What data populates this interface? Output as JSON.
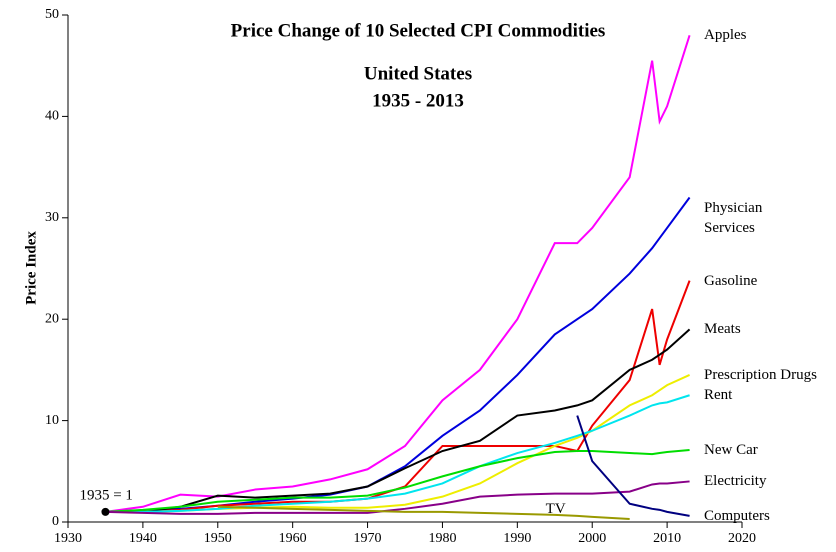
{
  "chart_data": {
    "type": "line",
    "title": "Price Change of 10 Selected CPI Commodities",
    "subtitle": [
      "United States",
      "1935 - 2013"
    ],
    "y_label": "Price Index",
    "annotation": "1935 = 1",
    "annotation_point": [
      1935,
      1
    ],
    "x": [
      1935,
      1940,
      1945,
      1950,
      1955,
      1960,
      1965,
      1970,
      1975,
      1980,
      1985,
      1990,
      1995,
      1998,
      2000,
      2005,
      2008,
      2009,
      2010,
      2013
    ],
    "series": [
      {
        "name": "Apples",
        "color": "#ff00ff",
        "values": [
          1,
          1.5,
          2.7,
          2.5,
          3.2,
          3.5,
          4.2,
          5.2,
          7.5,
          12,
          15,
          20,
          27.5,
          27.5,
          29,
          34,
          45.5,
          39.5,
          41,
          48
        ]
      },
      {
        "name": "Physician Services",
        "color": "#0000dd",
        "values": [
          1,
          1.1,
          1.3,
          1.6,
          2,
          2.3,
          2.7,
          3.5,
          5.5,
          8.5,
          11,
          14.5,
          18.5,
          20,
          21,
          24.5,
          27,
          28,
          29,
          32
        ]
      },
      {
        "name": "Gasoline",
        "color": "#ee0000",
        "values": [
          1,
          1,
          1.2,
          1.6,
          1.8,
          2,
          2,
          2.3,
          3.5,
          7.5,
          7.5,
          7.5,
          7.5,
          7,
          9.5,
          14,
          21,
          15.5,
          18,
          23.8
        ]
      },
      {
        "name": "Meats",
        "color": "#000000",
        "values": [
          1,
          1,
          1.5,
          2.6,
          2.4,
          2.6,
          2.8,
          3.5,
          5.3,
          7,
          8,
          10.5,
          11,
          11.5,
          12,
          15,
          16,
          16.5,
          17,
          19
        ]
      },
      {
        "name": "Prescription Drugs",
        "color": "#eeee00",
        "values": [
          1,
          1,
          1.1,
          1.3,
          1.4,
          1.5,
          1.4,
          1.4,
          1.7,
          2.5,
          3.8,
          5.8,
          7.5,
          8.3,
          9,
          11.5,
          12.5,
          13,
          13.5,
          14.5
        ]
      },
      {
        "name": "Rent",
        "color": "#00e5ee",
        "values": [
          1,
          1,
          1.1,
          1.3,
          1.6,
          1.8,
          2,
          2.3,
          2.8,
          3.8,
          5.5,
          6.8,
          7.8,
          8.5,
          9,
          10.5,
          11.5,
          11.7,
          11.8,
          12.5
        ]
      },
      {
        "name": "New Car",
        "color": "#00dd00",
        "values": [
          1,
          1.2,
          1.5,
          2,
          2.2,
          2.4,
          2.4,
          2.6,
          3.4,
          4.5,
          5.5,
          6.3,
          6.9,
          7,
          7,
          6.8,
          6.7,
          6.8,
          6.9,
          7.1
        ]
      },
      {
        "name": "Electricity",
        "color": "#880088",
        "values": [
          1,
          0.9,
          0.8,
          0.8,
          0.9,
          0.9,
          0.9,
          0.9,
          1.3,
          1.8,
          2.5,
          2.7,
          2.8,
          2.8,
          2.8,
          3,
          3.7,
          3.8,
          3.8,
          4
        ]
      },
      {
        "name": "TV",
        "color": "#999900",
        "values": [
          null,
          null,
          null,
          1.5,
          1.4,
          1.3,
          1.2,
          1.1,
          1,
          1,
          0.9,
          0.8,
          0.7,
          0.6,
          0.5,
          0.3,
          null,
          null,
          null,
          null
        ]
      },
      {
        "name": "Computers",
        "color": "#000080",
        "values": [
          null,
          null,
          null,
          null,
          null,
          null,
          null,
          null,
          null,
          null,
          null,
          null,
          null,
          10.5,
          6,
          1.8,
          1.3,
          1.2,
          1,
          0.6
        ]
      }
    ],
    "xlim": [
      1930,
      2020
    ],
    "xticks": [
      1930,
      1940,
      1950,
      1960,
      1970,
      1980,
      1990,
      2000,
      2010,
      2020
    ],
    "ylim": [
      0,
      50
    ],
    "yticks": [
      0,
      10,
      20,
      30,
      40,
      50
    ],
    "grid": false
  }
}
